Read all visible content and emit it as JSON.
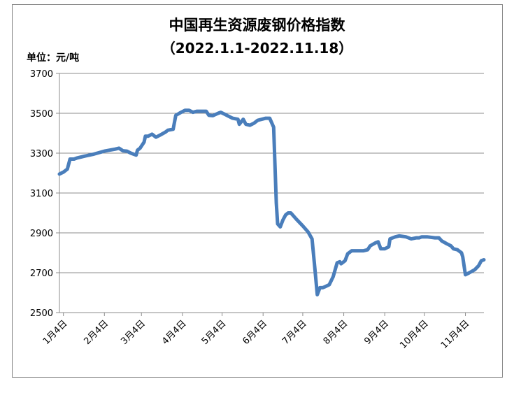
{
  "chart_data": {
    "type": "line",
    "title": "中国再生资源废钢价格指数",
    "subtitle": "（2022.1.1-2022.11.18）",
    "unit_label": "单位：元/吨",
    "xlabel": "",
    "ylabel": "",
    "ylim": [
      2500,
      3700
    ],
    "yticks": [
      2500,
      2700,
      2900,
      3100,
      3300,
      3500,
      3700
    ],
    "x_range": [
      "2022-01-01",
      "2022-11-18"
    ],
    "xticks": [
      {
        "date": "2022-01-04",
        "label": "1月4日"
      },
      {
        "date": "2022-02-04",
        "label": "2月4日"
      },
      {
        "date": "2022-03-04",
        "label": "3月4日"
      },
      {
        "date": "2022-04-04",
        "label": "4月4日"
      },
      {
        "date": "2022-05-04",
        "label": "5月4日"
      },
      {
        "date": "2022-06-04",
        "label": "6月4日"
      },
      {
        "date": "2022-07-04",
        "label": "7月4日"
      },
      {
        "date": "2022-08-04",
        "label": "8月4日"
      },
      {
        "date": "2022-09-04",
        "label": "9月4日"
      },
      {
        "date": "2022-10-04",
        "label": "10月4日"
      },
      {
        "date": "2022-11-04",
        "label": "11月4日"
      }
    ],
    "grid": true,
    "legend": "none",
    "series": [
      {
        "color": "#4a7ebb",
        "points": [
          [
            "2022-01-01",
            3195
          ],
          [
            "2022-01-04",
            3205
          ],
          [
            "2022-01-07",
            3220
          ],
          [
            "2022-01-09",
            3270
          ],
          [
            "2022-01-12",
            3270
          ],
          [
            "2022-01-14",
            3275
          ],
          [
            "2022-01-20",
            3285
          ],
          [
            "2022-01-27",
            3295
          ],
          [
            "2022-02-04",
            3310
          ],
          [
            "2022-02-12",
            3320
          ],
          [
            "2022-02-15",
            3325
          ],
          [
            "2022-02-18",
            3312
          ],
          [
            "2022-02-21",
            3310
          ],
          [
            "2022-02-24",
            3300
          ],
          [
            "2022-02-28",
            3290
          ],
          [
            "2022-03-01",
            3315
          ],
          [
            "2022-03-03",
            3325
          ],
          [
            "2022-03-06",
            3355
          ],
          [
            "2022-03-07",
            3385
          ],
          [
            "2022-03-09",
            3385
          ],
          [
            "2022-03-12",
            3395
          ],
          [
            "2022-03-15",
            3380
          ],
          [
            "2022-03-18",
            3390
          ],
          [
            "2022-03-22",
            3405
          ],
          [
            "2022-03-24",
            3415
          ],
          [
            "2022-03-28",
            3420
          ],
          [
            "2022-03-30",
            3490
          ],
          [
            "2022-04-03",
            3505
          ],
          [
            "2022-04-06",
            3515
          ],
          [
            "2022-04-09",
            3515
          ],
          [
            "2022-04-12",
            3505
          ],
          [
            "2022-04-15",
            3510
          ],
          [
            "2022-04-18",
            3510
          ],
          [
            "2022-04-22",
            3510
          ],
          [
            "2022-04-24",
            3490
          ],
          [
            "2022-04-27",
            3488
          ],
          [
            "2022-05-01",
            3500
          ],
          [
            "2022-05-03",
            3505
          ],
          [
            "2022-05-06",
            3495
          ],
          [
            "2022-05-09",
            3485
          ],
          [
            "2022-05-12",
            3475
          ],
          [
            "2022-05-16",
            3470
          ],
          [
            "2022-05-17",
            3445
          ],
          [
            "2022-05-20",
            3470
          ],
          [
            "2022-05-22",
            3445
          ],
          [
            "2022-05-25",
            3440
          ],
          [
            "2022-05-28",
            3450
          ],
          [
            "2022-05-31",
            3465
          ],
          [
            "2022-06-03",
            3470
          ],
          [
            "2022-06-06",
            3475
          ],
          [
            "2022-06-09",
            3475
          ],
          [
            "2022-06-12",
            3430
          ],
          [
            "2022-06-14",
            3050
          ],
          [
            "2022-06-15",
            2945
          ],
          [
            "2022-06-17",
            2930
          ],
          [
            "2022-06-19",
            2965
          ],
          [
            "2022-06-21",
            2990
          ],
          [
            "2022-06-23",
            3000
          ],
          [
            "2022-06-25",
            3000
          ],
          [
            "2022-06-29",
            2970
          ],
          [
            "2022-07-04",
            2935
          ],
          [
            "2022-07-08",
            2905
          ],
          [
            "2022-07-11",
            2870
          ],
          [
            "2022-07-13",
            2730
          ],
          [
            "2022-07-15",
            2590
          ],
          [
            "2022-07-17",
            2625
          ],
          [
            "2022-07-19",
            2625
          ],
          [
            "2022-07-21",
            2630
          ],
          [
            "2022-07-24",
            2640
          ],
          [
            "2022-07-27",
            2680
          ],
          [
            "2022-07-30",
            2750
          ],
          [
            "2022-08-01",
            2755
          ],
          [
            "2022-08-02",
            2745
          ],
          [
            "2022-08-05",
            2760
          ],
          [
            "2022-08-07",
            2795
          ],
          [
            "2022-08-10",
            2810
          ],
          [
            "2022-08-15",
            2810
          ],
          [
            "2022-08-19",
            2810
          ],
          [
            "2022-08-22",
            2815
          ],
          [
            "2022-08-24",
            2835
          ],
          [
            "2022-08-28",
            2850
          ],
          [
            "2022-08-30",
            2855
          ],
          [
            "2022-09-01",
            2820
          ],
          [
            "2022-09-04",
            2820
          ],
          [
            "2022-09-07",
            2830
          ],
          [
            "2022-09-08",
            2870
          ],
          [
            "2022-09-12",
            2880
          ],
          [
            "2022-09-15",
            2885
          ],
          [
            "2022-09-20",
            2880
          ],
          [
            "2022-09-24",
            2870
          ],
          [
            "2022-09-28",
            2875
          ],
          [
            "2022-09-30",
            2875
          ],
          [
            "2022-10-02",
            2880
          ],
          [
            "2022-10-06",
            2880
          ],
          [
            "2022-10-12",
            2875
          ],
          [
            "2022-10-15",
            2875
          ],
          [
            "2022-10-17",
            2860
          ],
          [
            "2022-10-21",
            2845
          ],
          [
            "2022-10-24",
            2835
          ],
          [
            "2022-10-26",
            2820
          ],
          [
            "2022-10-29",
            2815
          ],
          [
            "2022-11-01",
            2800
          ],
          [
            "2022-11-02",
            2780
          ],
          [
            "2022-11-04",
            2690
          ],
          [
            "2022-11-07",
            2700
          ],
          [
            "2022-11-11",
            2715
          ],
          [
            "2022-11-14",
            2735
          ],
          [
            "2022-11-16",
            2760
          ],
          [
            "2022-11-18",
            2765
          ]
        ]
      }
    ]
  }
}
